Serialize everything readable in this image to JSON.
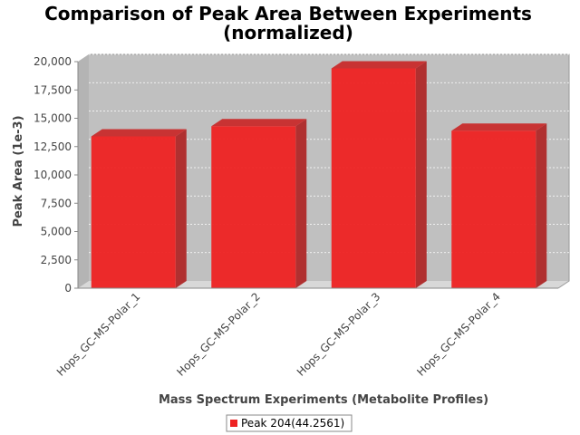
{
  "chart_data": {
    "type": "bar",
    "title": "Comparison of Peak Area Between Experiments",
    "subtitle": "(normalized)",
    "xlabel": "Mass Spectrum Experiments (Metabolite Profiles)",
    "ylabel": "Peak Area (1e-3)",
    "categories": [
      "Hops_GC-MS-Polar_1",
      "Hops_GC-MS-Polar_2",
      "Hops_GC-MS-Polar_3",
      "Hops_GC-MS-Polar_4"
    ],
    "series": [
      {
        "name": "Peak 204(44.2561)",
        "values": [
          13400,
          14300,
          19400,
          13900
        ],
        "color": "#ee2222"
      }
    ],
    "ylim": [
      0,
      20000
    ],
    "yticks": [
      0,
      2500,
      5000,
      7500,
      10000,
      12500,
      15000,
      17500,
      20000
    ],
    "ytick_labels": [
      "0",
      "2,500",
      "5,000",
      "7,500",
      "10,000",
      "12,500",
      "15,000",
      "17,500",
      "20,000"
    ],
    "grid": true,
    "legend_position": "bottom",
    "plot_background": "#c0c0c0",
    "style": "3d-bar"
  }
}
